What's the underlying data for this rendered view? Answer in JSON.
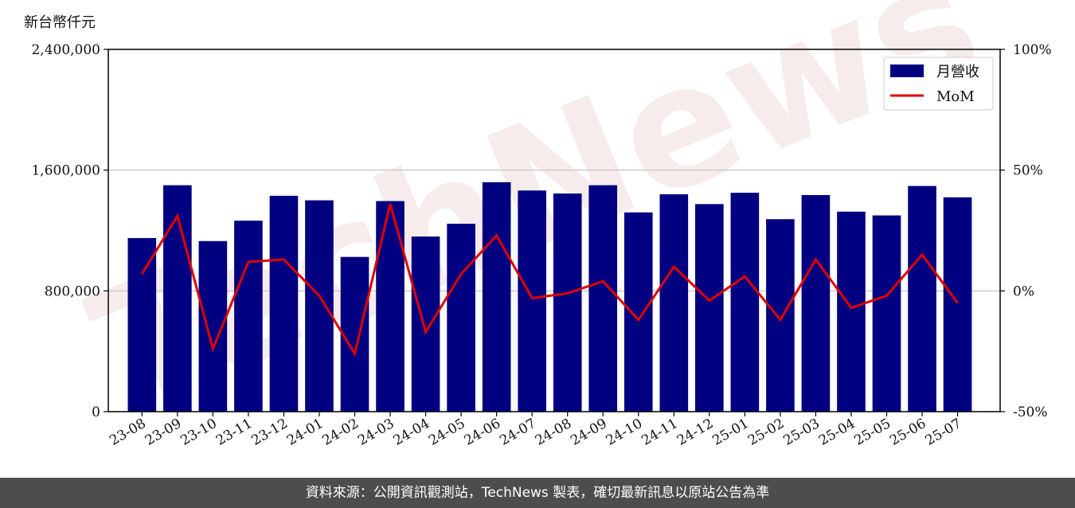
{
  "unit_label": "新台幣仟元",
  "footer_text": "資料來源：公開資訊觀測站，TechNews 製表，確切最新訊息以原站公告為準",
  "watermark_text": "TechNews",
  "colors": {
    "bar": "#000080",
    "line": "#e00000",
    "watermark": "#e8c9c9",
    "grid": "#cccccc",
    "footer_bg": "#4d4d4d"
  },
  "chart_data": {
    "type": "bar",
    "categories": [
      "23-08",
      "23-09",
      "23-10",
      "23-11",
      "23-12",
      "24-01",
      "24-02",
      "24-03",
      "24-04",
      "24-05",
      "24-06",
      "24-07",
      "24-08",
      "24-09",
      "24-10",
      "24-11",
      "24-12",
      "25-01",
      "25-02",
      "25-03",
      "25-04",
      "25-05",
      "25-06",
      "25-07"
    ],
    "series": [
      {
        "name": "月營收",
        "type": "bar",
        "axis": "left",
        "values": [
          1150000,
          1500000,
          1130000,
          1265000,
          1430000,
          1400000,
          1025000,
          1395000,
          1160000,
          1245000,
          1520000,
          1465000,
          1445000,
          1500000,
          1320000,
          1440000,
          1375000,
          1450000,
          1275000,
          1435000,
          1325000,
          1300000,
          1495000,
          1420000
        ]
      },
      {
        "name": "MoM",
        "type": "line",
        "axis": "right",
        "values": [
          7,
          31,
          -24,
          12,
          13,
          -2,
          -26,
          36,
          -17,
          7,
          23,
          -3,
          -1,
          4,
          -12,
          10,
          -4,
          6,
          -12,
          13,
          -7,
          -2,
          15,
          -5
        ]
      }
    ],
    "y_left": {
      "min": 0,
      "max": 2400000,
      "ticks": [
        "0",
        "800,000",
        "1,600,000",
        "2,400,000"
      ],
      "tick_values": [
        0,
        800000,
        1600000,
        2400000
      ]
    },
    "y_right": {
      "min": -50,
      "max": 100,
      "ticks": [
        "-50%",
        "0%",
        "50%",
        "100%"
      ],
      "tick_values": [
        -50,
        0,
        50,
        100
      ]
    },
    "grid": "horizontal",
    "legend_position": "top-right",
    "legend": [
      {
        "label": "月營收",
        "kind": "bar"
      },
      {
        "label": "MoM",
        "kind": "line"
      }
    ]
  }
}
